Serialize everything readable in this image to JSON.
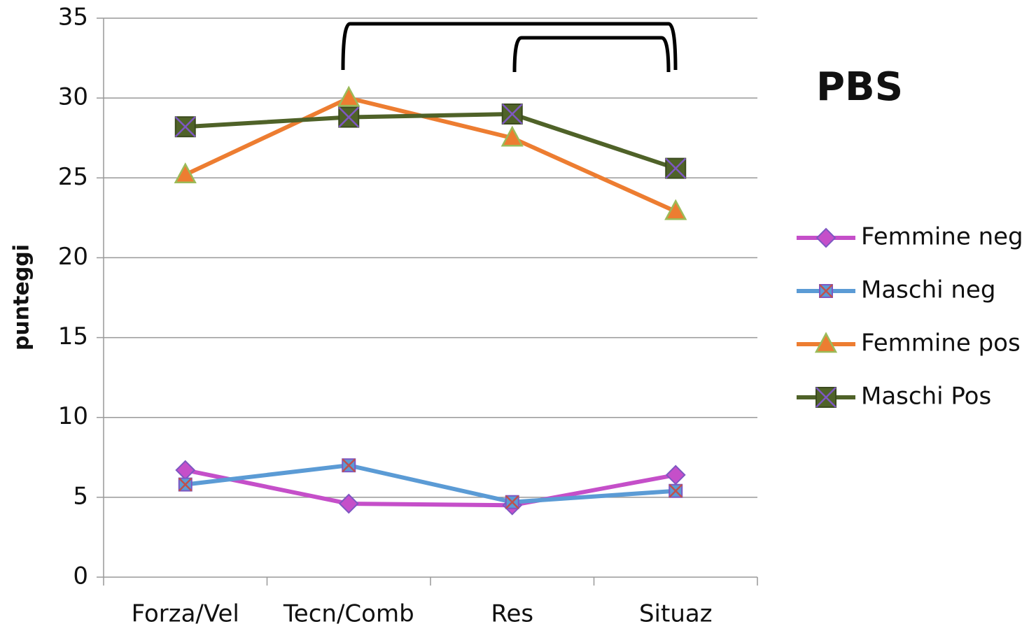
{
  "chart_data": {
    "type": "line",
    "title": "PBS",
    "y_label": "punteggi",
    "categories": [
      "Forza/Vel",
      "Tecn/Comb",
      "Res",
      "Situaz"
    ],
    "series": [
      {
        "name": "Femmine neg",
        "color": "#c54fc9",
        "marker": "diamond",
        "values": [
          6.7,
          4.6,
          4.5,
          6.4
        ]
      },
      {
        "name": "Maschi neg",
        "color": "#5b9bd5",
        "marker": "xsquare",
        "values": [
          5.8,
          7.0,
          4.7,
          5.4
        ]
      },
      {
        "name": "Femmine pos",
        "color": "#ed7d31",
        "marker": "triangle",
        "values": [
          25.2,
          30.0,
          27.5,
          22.9
        ]
      },
      {
        "name": "Maschi Pos",
        "color": "#4f6228",
        "marker": "xsquare",
        "values": [
          28.2,
          28.8,
          29.0,
          25.6
        ]
      }
    ],
    "ylim": [
      0,
      35
    ],
    "yticks": [
      0,
      5,
      10,
      15,
      20,
      25,
      30,
      35
    ],
    "grid": true,
    "legend": "right"
  }
}
